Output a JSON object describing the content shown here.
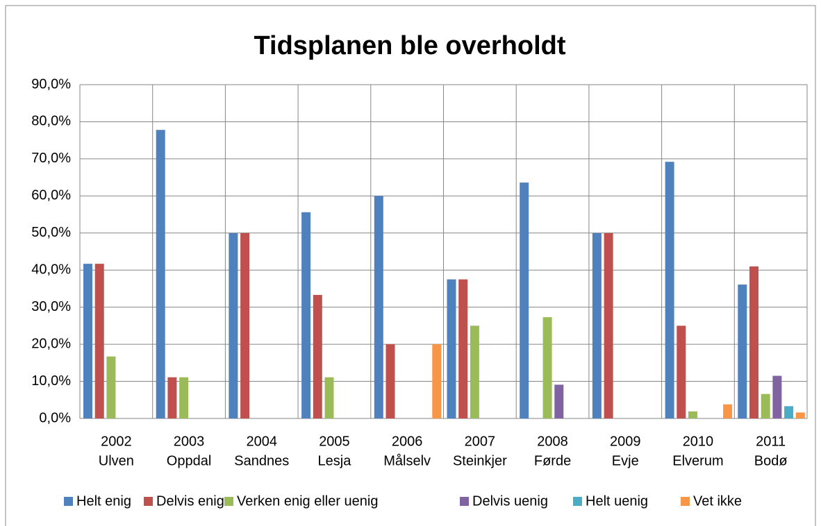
{
  "chart_data": {
    "type": "bar",
    "title": "Tidsplanen ble overholdt",
    "categories": [
      [
        "2002",
        "Ulven"
      ],
      [
        "2003",
        "Oppdal"
      ],
      [
        "2004",
        "Sandnes"
      ],
      [
        "2005",
        "Lesja"
      ],
      [
        "2006",
        "Målselv"
      ],
      [
        "2007",
        "Steinkjer"
      ],
      [
        "2008",
        "Førde"
      ],
      [
        "2009",
        "Evje"
      ],
      [
        "2010",
        "Elverum"
      ],
      [
        "2011",
        "Bodø"
      ]
    ],
    "series": [
      {
        "name": "Helt enig",
        "color": "#4f81bd",
        "values": [
          41.7,
          77.8,
          50,
          55.6,
          60,
          37.5,
          63.6,
          50,
          69.2,
          36.1
        ]
      },
      {
        "name": "Delvis enig",
        "color": "#c0504d",
        "values": [
          41.7,
          11.1,
          50,
          33.3,
          20,
          37.5,
          0,
          50,
          25,
          41.0
        ]
      },
      {
        "name": "Verken enig eller uenig",
        "color": "#9bbb59",
        "values": [
          16.7,
          11.1,
          0,
          11.1,
          0,
          25,
          27.3,
          0,
          1.9,
          6.6
        ]
      },
      {
        "name": "Delvis uenig",
        "color": "#8064a2",
        "values": [
          0,
          0,
          0,
          0,
          0,
          0,
          9.1,
          0,
          0,
          11.5
        ]
      },
      {
        "name": "Helt uenig",
        "color": "#4bacc6",
        "values": [
          0,
          0,
          0,
          0,
          0,
          0,
          0,
          0,
          0,
          3.3
        ]
      },
      {
        "name": "Vet ikke",
        "color": "#f79646",
        "values": [
          0,
          0,
          0,
          0,
          20,
          0,
          0,
          0,
          3.8,
          1.6
        ]
      }
    ],
    "ylim": [
      0,
      90
    ],
    "yticks": [
      {
        "value": 0,
        "label": "0,0%"
      },
      {
        "value": 10,
        "label": "10,0%"
      },
      {
        "value": 20,
        "label": "20,0%"
      },
      {
        "value": 30,
        "label": "30,0%"
      },
      {
        "value": 40,
        "label": "40,0%"
      },
      {
        "value": 50,
        "label": "50,0%"
      },
      {
        "value": 60,
        "label": "60,0%"
      },
      {
        "value": 70,
        "label": "70,0%"
      },
      {
        "value": 80,
        "label": "80,0%"
      },
      {
        "value": 90,
        "label": "90,0%"
      }
    ],
    "grid": true,
    "legend": "bottom"
  }
}
